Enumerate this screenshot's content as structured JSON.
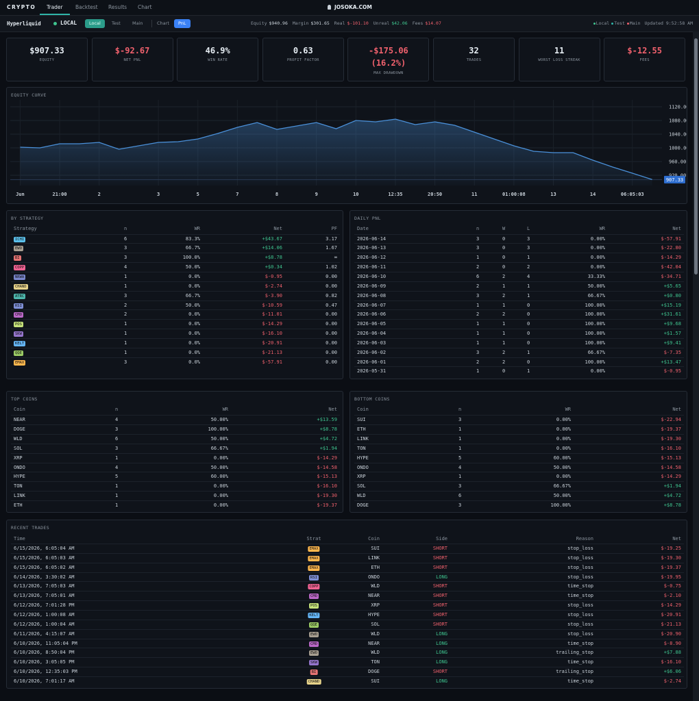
{
  "nav": {
    "brand": "CRYPTO",
    "tabs": [
      "Trader",
      "Backtest",
      "Results",
      "Chart"
    ],
    "site": "JOSOKA.COM"
  },
  "status_bar": {
    "exchange": "Hyperliquid",
    "mode": "LOCAL",
    "env_buttons": [
      "Local",
      "Test",
      "Main"
    ],
    "view_buttons": [
      "Chart",
      "PnL"
    ],
    "stats": [
      {
        "label": "Equity",
        "value": "$940.96",
        "color": "#c9d1d9"
      },
      {
        "label": "Margin",
        "value": "$301.65",
        "color": "#c9d1d9"
      },
      {
        "label": "Real",
        "value": "$-101.10",
        "color": "#f0616d"
      },
      {
        "label": "Unreal",
        "value": "$42.06",
        "color": "#3fc48f"
      },
      {
        "label": "Fees",
        "value": "$14.07",
        "color": "#f0616d"
      }
    ],
    "indicators": [
      {
        "label": "Local",
        "color": "#3fc48f"
      },
      {
        "label": "Test",
        "color": "#2fb5a8"
      },
      {
        "label": "Main",
        "color": "#f0616d"
      }
    ],
    "updated": "Updated 9:52:58 AM"
  },
  "kpis": [
    {
      "value": "$907.33",
      "label": "EQUITY"
    },
    {
      "value": "$-92.67",
      "label": "NET PNL"
    },
    {
      "value": "46.9%",
      "label": "WIN RATE"
    },
    {
      "value": "0.63",
      "label": "PROFIT FACTOR"
    },
    {
      "value": "-$175.06 (16.2%)",
      "label": "MAX DRAWDOWN"
    },
    {
      "value": "32",
      "label": "TRADES"
    },
    {
      "value": "11",
      "label": "WORST LOSS STREAK"
    },
    {
      "value": "$-12.55",
      "label": "FEES"
    }
  ],
  "equity_curve": {
    "type": "line",
    "title": "EQUITY CURVE",
    "line_color": "#4a90d9",
    "values": [
      1002,
      1000,
      1012,
      1012,
      1016,
      996,
      1006,
      1016,
      1018,
      1026,
      1042,
      1060,
      1074,
      1054,
      1064,
      1074,
      1056,
      1080,
      1076,
      1084,
      1068,
      1076,
      1066,
      1046,
      1026,
      1006,
      990,
      986,
      986,
      964,
      944,
      926,
      907.33
    ],
    "ylim": [
      890,
      1130
    ],
    "yticks": [
      {
        "value": 920,
        "label": "920.00"
      },
      {
        "value": 960,
        "label": "960.00"
      },
      {
        "value": 1000,
        "label": "1000.00"
      },
      {
        "value": 1040,
        "label": "1040.00"
      },
      {
        "value": 1080,
        "label": "1080.00"
      },
      {
        "value": 1120,
        "label": "1120.00"
      }
    ],
    "xlim": [
      -0.5,
      32.5
    ],
    "xticks": [
      {
        "value": 0,
        "label": "Jun"
      },
      {
        "value": 2,
        "label": "21:00"
      },
      {
        "value": 4,
        "label": "2"
      },
      {
        "value": 7,
        "label": "3"
      },
      {
        "value": 9,
        "label": "5"
      },
      {
        "value": 11,
        "label": "7"
      },
      {
        "value": 13,
        "label": "8"
      },
      {
        "value": 15,
        "label": "9"
      },
      {
        "value": 17,
        "label": "10"
      },
      {
        "value": 19,
        "label": "12:35"
      },
      {
        "value": 21,
        "label": "20:50"
      },
      {
        "value": 23,
        "label": "11"
      },
      {
        "value": 25,
        "label": "01:00:08"
      },
      {
        "value": 27,
        "label": "13"
      },
      {
        "value": 29,
        "label": "14"
      },
      {
        "value": 31,
        "label": "06:05:03"
      }
    ],
    "grid": true
  },
  "strategy_badges": [
    {
      "name": "ICHI",
      "color": "#5bc0eb"
    },
    {
      "name": "EWO",
      "color": "#a89f91"
    },
    {
      "name": "BI",
      "color": "#e57373"
    },
    {
      "name": "COPP",
      "color": "#f06292"
    },
    {
      "name": "NRWA",
      "color": "#7986cb"
    },
    {
      "name": "CHAND",
      "color": "#e6d28a"
    },
    {
      "name": "ATRC",
      "color": "#4db6ac"
    },
    {
      "name": "RSI",
      "color": "#7e8fd6"
    },
    {
      "name": "CMO",
      "color": "#ba68c8"
    },
    {
      "name": "POS",
      "color": "#c5e17a"
    },
    {
      "name": "SKW",
      "color": "#9575cd"
    },
    {
      "name": "KELT",
      "color": "#64b5f6"
    },
    {
      "name": "QQE",
      "color": "#9ccc65"
    },
    {
      "name": "EMAX",
      "color": "#ffb74d"
    }
  ],
  "by_strategy": {
    "title": "BY STRATEGY",
    "columns": [
      "Strategy",
      "n",
      "WR",
      "Net",
      "PF"
    ],
    "rows": [
      [
        "ICHI",
        6,
        "83.3%",
        "+$43.67",
        "3.17"
      ],
      [
        "EWO",
        3,
        "66.7%",
        "+$14.06",
        "1.67"
      ],
      [
        "BI",
        3,
        "100.0%",
        "+$8.78",
        "∞"
      ],
      [
        "COPP",
        4,
        "50.0%",
        "+$0.34",
        "1.02"
      ],
      [
        "NRWA",
        1,
        "0.0%",
        "$-0.95",
        "0.00"
      ],
      [
        "CHAND",
        1,
        "0.0%",
        "$-2.74",
        "0.00"
      ],
      [
        "ATRC",
        3,
        "66.7%",
        "$-3.90",
        "0.82"
      ],
      [
        "RSI",
        2,
        "50.0%",
        "$-10.59",
        "0.47"
      ],
      [
        "CMO",
        2,
        "0.0%",
        "$-11.01",
        "0.00"
      ],
      [
        "POS",
        1,
        "0.0%",
        "$-14.29",
        "0.00"
      ],
      [
        "SKW",
        1,
        "0.0%",
        "$-16.10",
        "0.00"
      ],
      [
        "KELT",
        1,
        "0.0%",
        "$-20.91",
        "0.00"
      ],
      [
        "QQE",
        1,
        "0.0%",
        "$-21.13",
        "0.00"
      ],
      [
        "EMAX",
        3,
        "0.0%",
        "$-57.91",
        "0.00"
      ]
    ]
  },
  "daily_pnl": {
    "title": "DAILY PNL",
    "columns": [
      "Date",
      "n",
      "W",
      "L",
      "WR",
      "Net"
    ],
    "rows": [
      [
        "2026-06-14",
        3,
        0,
        3,
        "0.00%",
        "$-57.91"
      ],
      [
        "2026-06-13",
        3,
        0,
        3,
        "0.00%",
        "$-22.80"
      ],
      [
        "2026-06-12",
        1,
        0,
        1,
        "0.00%",
        "$-14.29"
      ],
      [
        "2026-06-11",
        2,
        0,
        2,
        "0.00%",
        "$-42.04"
      ],
      [
        "2026-06-10",
        6,
        2,
        4,
        "33.33%",
        "$-34.71"
      ],
      [
        "2026-06-09",
        2,
        1,
        1,
        "50.00%",
        "+$5.65"
      ],
      [
        "2026-06-08",
        3,
        2,
        1,
        "66.67%",
        "+$0.80"
      ],
      [
        "2026-06-07",
        1,
        1,
        0,
        "100.00%",
        "+$15.19"
      ],
      [
        "2026-06-06",
        2,
        2,
        0,
        "100.00%",
        "+$31.61"
      ],
      [
        "2026-06-05",
        1,
        1,
        0,
        "100.00%",
        "+$9.68"
      ],
      [
        "2026-06-04",
        1,
        1,
        0,
        "100.00%",
        "+$1.57"
      ],
      [
        "2026-06-03",
        1,
        1,
        0,
        "100.00%",
        "+$9.41"
      ],
      [
        "2026-06-02",
        3,
        2,
        1,
        "66.67%",
        "$-7.35"
      ],
      [
        "2026-06-01",
        2,
        2,
        0,
        "100.00%",
        "+$13.47"
      ],
      [
        "2026-05-31",
        1,
        0,
        1,
        "0.00%",
        "$-0.95"
      ]
    ]
  },
  "top_coins": {
    "title": "TOP COINS",
    "columns": [
      "Coin",
      "n",
      "WR",
      "Net"
    ],
    "rows": [
      [
        "NEAR",
        4,
        "50.00%",
        "+$13.59"
      ],
      [
        "DOGE",
        3,
        "100.00%",
        "+$8.78"
      ],
      [
        "WLD",
        6,
        "50.00%",
        "+$4.72"
      ],
      [
        "SOL",
        3,
        "66.67%",
        "+$1.94"
      ],
      [
        "XRP",
        1,
        "0.00%",
        "$-14.29"
      ],
      [
        "ONDO",
        4,
        "50.00%",
        "$-14.58"
      ],
      [
        "HYPE",
        5,
        "60.00%",
        "$-15.13"
      ],
      [
        "TON",
        1,
        "0.00%",
        "$-16.10"
      ],
      [
        "LINK",
        1,
        "0.00%",
        "$-19.30"
      ],
      [
        "ETH",
        1,
        "0.00%",
        "$-19.37"
      ]
    ]
  },
  "bottom_coins": {
    "title": "BOTTOM COINS",
    "columns": [
      "Coin",
      "n",
      "WR",
      "Net"
    ],
    "rows": [
      [
        "SUI",
        3,
        "0.00%",
        "$-22.94"
      ],
      [
        "ETH",
        1,
        "0.00%",
        "$-19.37"
      ],
      [
        "LINK",
        1,
        "0.00%",
        "$-19.30"
      ],
      [
        "TON",
        1,
        "0.00%",
        "$-16.10"
      ],
      [
        "HYPE",
        5,
        "60.00%",
        "$-15.13"
      ],
      [
        "ONDO",
        4,
        "50.00%",
        "$-14.58"
      ],
      [
        "XRP",
        1,
        "0.00%",
        "$-14.29"
      ],
      [
        "SOL",
        3,
        "66.67%",
        "+$1.94"
      ],
      [
        "WLD",
        6,
        "50.00%",
        "+$4.72"
      ],
      [
        "DOGE",
        3,
        "100.00%",
        "+$8.78"
      ]
    ]
  },
  "recent_trades": {
    "title": "RECENT TRADES",
    "columns": [
      "Time",
      "Strat",
      "Coin",
      "Side",
      "Reason",
      "Net"
    ],
    "side_colors": {
      "LONG": "#3fc48f",
      "SHORT": "#f0616d"
    },
    "rows": [
      [
        "6/15/2026, 6:05:04 AM",
        "EMAX",
        "SUI",
        "SHORT",
        "stop_loss",
        "$-19.25"
      ],
      [
        "6/15/2026, 6:05:03 AM",
        "EMAX",
        "LINK",
        "SHORT",
        "stop_loss",
        "$-19.30"
      ],
      [
        "6/15/2026, 6:05:02 AM",
        "EMAX",
        "ETH",
        "SHORT",
        "stop_loss",
        "$-19.37"
      ],
      [
        "6/14/2026, 3:30:02 AM",
        "RSI",
        "ONDO",
        "LONG",
        "stop_loss",
        "$-19.95"
      ],
      [
        "6/13/2026, 7:05:03 AM",
        "COPP",
        "WLD",
        "SHORT",
        "time_stop",
        "$-0.75"
      ],
      [
        "6/13/2026, 7:05:01 AM",
        "CMO",
        "NEAR",
        "SHORT",
        "time_stop",
        "$-2.10"
      ],
      [
        "6/12/2026, 7:01:28 PM",
        "POS",
        "XRP",
        "SHORT",
        "stop_loss",
        "$-14.29"
      ],
      [
        "6/12/2026, 1:00:08 AM",
        "KELT",
        "HYPE",
        "SHORT",
        "stop_loss",
        "$-20.91"
      ],
      [
        "6/12/2026, 1:00:04 AM",
        "QQE",
        "SOL",
        "SHORT",
        "stop_loss",
        "$-21.13"
      ],
      [
        "6/11/2026, 4:15:07 AM",
        "EWO",
        "WLD",
        "LONG",
        "stop_loss",
        "$-20.90"
      ],
      [
        "6/10/2026, 11:05:04 PM",
        "CMO",
        "NEAR",
        "LONG",
        "time_stop",
        "$-8.90"
      ],
      [
        "6/10/2026, 8:50:04 PM",
        "EWO",
        "WLD",
        "LONG",
        "trailing_stop",
        "+$7.88"
      ],
      [
        "6/10/2026, 3:05:05 PM",
        "SKW",
        "TON",
        "LONG",
        "time_stop",
        "$-16.10"
      ],
      [
        "6/10/2026, 12:35:03 PM",
        "BI",
        "DOGE",
        "SHORT",
        "trailing_stop",
        "+$6.06"
      ],
      [
        "6/10/2026, 7:01:17 AM",
        "CHAND",
        "SUI",
        "LONG",
        "time_stop",
        "$-2.74"
      ]
    ]
  }
}
